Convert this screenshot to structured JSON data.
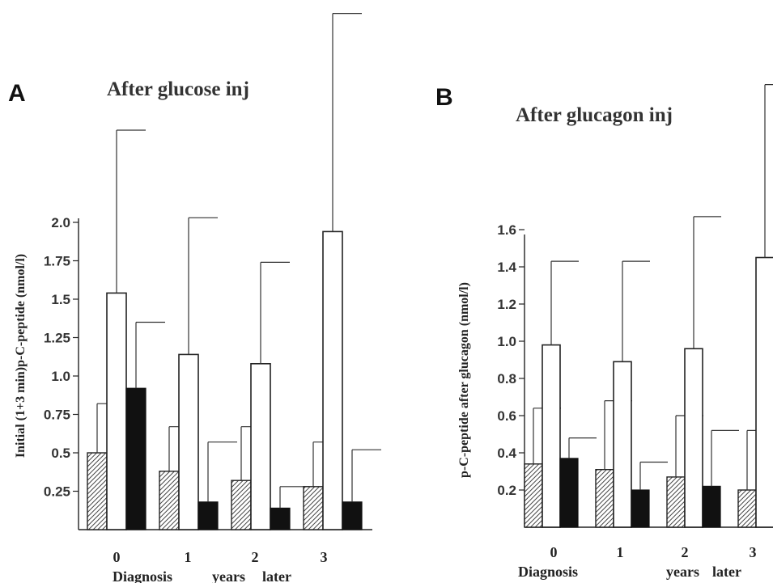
{
  "chart_data": [
    {
      "panel": "A",
      "type": "bar",
      "title": "After glucose inj",
      "ylabel": "Initial (1+3 min)p-C-peptide (nmol/l)",
      "ylim": [
        0,
        2.0
      ],
      "yticks": [
        "0.25",
        "0.5",
        "0.75",
        "1.0",
        "1.25",
        "1.5",
        "1.75",
        "2.0"
      ],
      "categories": [
        "0",
        "1",
        "2",
        "3"
      ],
      "x_caption": [
        "Diagnosis",
        "years",
        "later"
      ],
      "grid": false,
      "series": [
        {
          "style": "hatched",
          "values": [
            0.5,
            0.38,
            0.32,
            0.28
          ],
          "errors": [
            0.82,
            0.67,
            0.67,
            0.57
          ]
        },
        {
          "style": "open",
          "values": [
            1.54,
            1.14,
            1.08,
            1.94
          ],
          "errors": [
            2.6,
            2.03,
            1.74,
            3.36
          ]
        },
        {
          "style": "solid",
          "values": [
            0.92,
            0.18,
            0.14,
            0.18
          ],
          "errors": [
            1.35,
            0.57,
            0.28,
            0.52
          ]
        }
      ]
    },
    {
      "panel": "B",
      "type": "bar",
      "title": "After glucagon inj",
      "ylabel": "p-C-peptide after glucagon (nmol/l)",
      "ylim": [
        0,
        1.6
      ],
      "yticks": [
        "0.2",
        "0.4",
        "0.6",
        "0.8",
        "1.0",
        "1.2",
        "1.4",
        "1.6"
      ],
      "categories": [
        "0",
        "1",
        "2",
        "3"
      ],
      "x_caption": [
        "Diagnosis",
        "years",
        "later"
      ],
      "grid": false,
      "series": [
        {
          "style": "hatched",
          "values": [
            0.34,
            0.31,
            0.27,
            0.2
          ],
          "errors": [
            0.64,
            0.68,
            0.6,
            0.52
          ]
        },
        {
          "style": "open",
          "values": [
            0.98,
            0.89,
            0.96,
            1.45
          ],
          "errors": [
            1.43,
            1.43,
            1.67,
            2.38
          ]
        },
        {
          "style": "solid",
          "values": [
            0.37,
            0.2,
            0.22,
            0.2
          ],
          "errors": [
            0.48,
            0.35,
            0.52,
            0.48
          ]
        }
      ]
    }
  ]
}
